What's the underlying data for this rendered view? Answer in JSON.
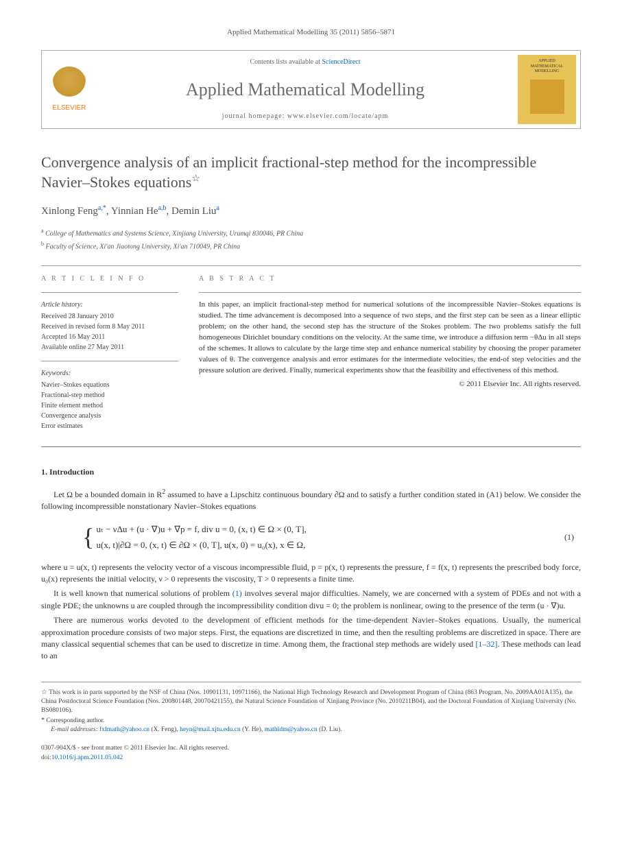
{
  "journal_ref": "Applied Mathematical Modelling 35 (2011) 5856–5871",
  "header": {
    "publisher_logo": "ELSEVIER",
    "contents_prefix": "Contents lists available at ",
    "contents_link": "ScienceDirect",
    "journal_name": "Applied Mathematical Modelling",
    "homepage_prefix": "journal homepage: ",
    "homepage_url": "www.elsevier.com/locate/apm",
    "cover_text": "APPLIED MATHEMATICAL MODELLING"
  },
  "title": "Convergence analysis of an implicit fractional-step method for the incompressible Navier–Stokes equations",
  "title_note_marker": "☆",
  "authors": [
    {
      "name": "Xinlong Feng",
      "aff": "a,",
      "corr": "*"
    },
    {
      "name": "Yinnian He",
      "aff": "a,b",
      "corr": ""
    },
    {
      "name": "Demin Liu",
      "aff": "a",
      "corr": ""
    }
  ],
  "affiliations": [
    {
      "sup": "a",
      "text": "College of Mathematics and Systems Science, Xinjiang University, Urumqi 830046, PR China"
    },
    {
      "sup": "b",
      "text": "Faculty of Science, Xi'an Jiaotong University, Xi'an 710049, PR China"
    }
  ],
  "article_info_label": "A R T I C L E   I N F O",
  "abstract_label": "A B S T R A C T",
  "history": {
    "label": "Article history:",
    "received": "Received 28 January 2010",
    "revised": "Received in revised form 8 May 2011",
    "accepted": "Accepted 16 May 2011",
    "online": "Available online 27 May 2011"
  },
  "keywords": {
    "label": "Keywords:",
    "items": [
      "Navier–Stokes equations",
      "Fractional-step method",
      "Finite element method",
      "Convergence analysis",
      "Error estimates"
    ]
  },
  "abstract": "In this paper, an implicit fractional-step method for numerical solutions of the incompressible Navier–Stokes equations is studied. The time advancement is decomposed into a sequence of two steps, and the first step can be seen as a linear elliptic problem; on the other hand, the second step has the structure of the Stokes problem. The two problems satisfy the full homogeneous Dirichlet boundary conditions on the velocity. At the same time, we introduce a diffusion term −θΔu in all steps of the schemes. It allows to calculate by the large time step and enhance numerical stability by choosing the proper parameter values of θ. The convergence analysis and error estimates for the intermediate velocities, the end-of step velocities and the pressure solution are derived. Finally, numerical experiments show that the feasibility and effectiveness of this method.",
  "copyright": "© 2011 Elsevier Inc. All rights reserved.",
  "section1": {
    "heading": "1. Introduction",
    "p1_a": "Let Ω be a bounded domain in R",
    "p1_sup": "2",
    "p1_b": " assumed to have a Lipschitz continuous boundary ∂Ω and to satisfy a further condition stated in (A1) below. We consider the following incompressible nonstationary Navier–Stokes equations",
    "eq1_line1": "uₜ − νΔu + (u · ∇)u + ∇p = f, div u = 0,    (x, t) ∈ Ω × (0, T],",
    "eq1_line2": "u(x, t)|∂Ω = 0, (x, t) ∈ ∂Ω × (0, T], u(x, 0) = u₀(x),    x ∈ Ω,",
    "eq1_num": "(1)",
    "p2": "where u = u(x, t) represents the velocity vector of a viscous incompressible fluid, p = p(x, t) represents the pressure, f = f(x, t) represents the prescribed body force, u₀(x) represents the initial velocity, ν > 0 represents the viscosity, T > 0 represents a finite time.",
    "p3_a": "It is well known that numerical solutions of problem ",
    "p3_link": "(1)",
    "p3_b": " involves several major difficulties. Namely, we are concerned with a system of PDEs and not with a single PDE; the unknowns u are coupled through the incompressibility condition divu = 0; the problem is nonlinear, owing to the presence of the term (u · ∇)u.",
    "p4_a": "There are numerous works devoted to the development of efficient methods for the time-dependent Navier–Stokes equations. Usually, the numerical approximation procedure consists of two major steps. First, the equations are discretized in time, and then the resulting problems are discretized in space. There are many classical sequential schemes that can be used to discretize in time. Among them, the fractional step methods are widely used ",
    "p4_link": "[1–32]",
    "p4_b": ". These methods can lead to an"
  },
  "footnotes": {
    "funding_marker": "☆",
    "funding": " This work is in parts supported by the NSF of China (Nos. 10901131, 10971166), the National High Technology Research and Development Program of China (863 Program, No. 2009AA01A135), the China Postdoctoral Science Foundation (Nos. 200801448, 20070421155), the Natural Science Foundation of Xinjiang Province (No. 2010211B04), and the Doctoral Foundation of Xinjiang University (No. BS080106).",
    "corr_marker": "*",
    "corr": " Corresponding author.",
    "email_label": "E-mail addresses: ",
    "emails": [
      {
        "addr": "fxlmath@yahoo.cn",
        "who": " (X. Feng), "
      },
      {
        "addr": "heyn@mail.xjtu.edu.cn",
        "who": " (Y. He), "
      },
      {
        "addr": "mathldm@yahoo.cn",
        "who": " (D. Liu)."
      }
    ]
  },
  "bottom": {
    "line1": "0307-904X/$ - see front matter © 2011 Elsevier Inc. All rights reserved.",
    "doi_prefix": "doi:",
    "doi": "10.1016/j.apm.2011.05.042"
  }
}
